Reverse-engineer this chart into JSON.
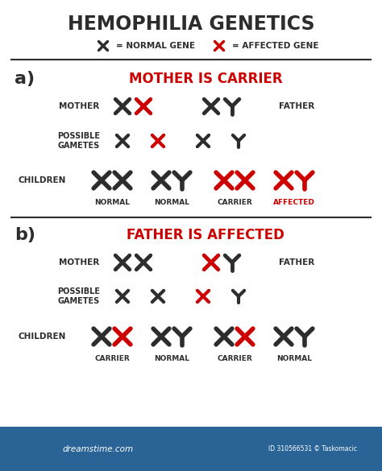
{
  "title": "HEMOPHILIA GENETICS",
  "bg_color": "#ffffff",
  "dark_color": "#2d2d2d",
  "red_color": "#cc0000",
  "section_a_title": "MOTHER IS CARRIER",
  "section_b_title": "FATHER IS AFFECTED",
  "footer_color": "#2a6496"
}
